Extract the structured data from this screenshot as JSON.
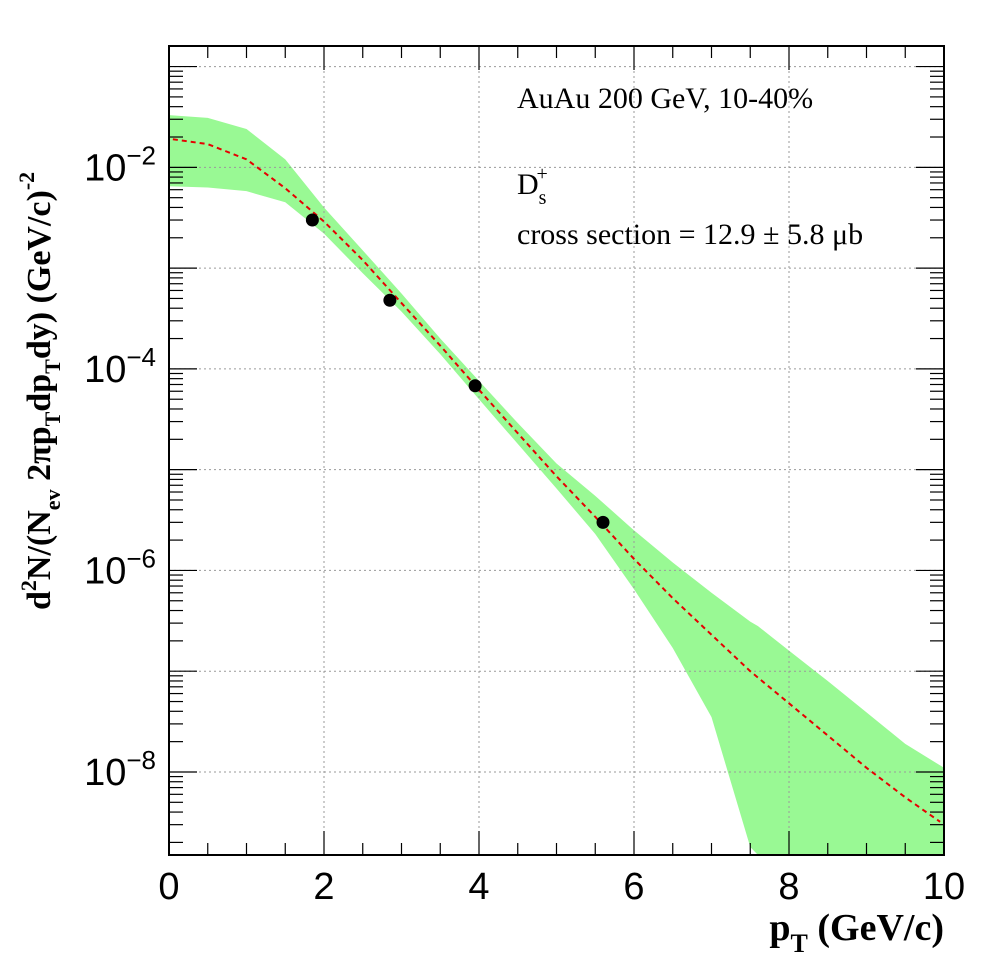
{
  "chart_data": {
    "type": "scatter",
    "title": "",
    "annotations": {
      "system": "AuAu 200 GeV, 10-40%",
      "particle": "D",
      "particle_sub": "s",
      "particle_sup": "+",
      "cross_section": "cross section = 12.9 ± 5.8 μb"
    },
    "xlabel": {
      "main": "p",
      "sub": "T",
      "rest": " (GeV/c)"
    },
    "ylabel": "d²N/(N_ev 2πp_T dp_T dy) (GeV/c)^-2",
    "xlim": [
      0,
      10
    ],
    "ylim": [
      1.5e-09,
      0.16
    ],
    "log_y": true,
    "grid": true,
    "x_ticks": [
      0,
      2,
      4,
      6,
      8,
      10
    ],
    "x_tick_labels": [
      "0",
      "2",
      "4",
      "6",
      "8",
      "10"
    ],
    "y_ticks": [
      1e-08,
      1e-06,
      0.0001,
      0.01
    ],
    "y_tick_labels": [
      {
        "base": "10",
        "exp": "−8"
      },
      {
        "base": "10",
        "exp": "−6"
      },
      {
        "base": "10",
        "exp": "−4"
      },
      {
        "base": "10",
        "exp": "−2"
      }
    ],
    "data_points": {
      "x": [
        1.85,
        2.85,
        3.95,
        5.6
      ],
      "y": [
        0.003,
        0.00048,
        6.8e-05,
        3e-06
      ]
    },
    "fit_curve": {
      "x": [
        0.05,
        0.5,
        1.0,
        1.5,
        2.0,
        2.5,
        3.0,
        3.5,
        4.0,
        4.5,
        5.0,
        5.5,
        6.0,
        6.5,
        7.0,
        7.5,
        8.0,
        8.5,
        9.0,
        9.5,
        9.95
      ],
      "y": [
        0.019,
        0.017,
        0.012,
        0.0062,
        0.0029,
        0.0012,
        0.00045,
        0.00017,
        6.2e-05,
        2.3e-05,
        8.6e-06,
        3.4e-06,
        1.3e-06,
        5.3e-07,
        2.3e-07,
        1e-07,
        4.8e-08,
        2.3e-08,
        1.1e-08,
        5.6e-09,
        3.2e-09
      ]
    },
    "band": {
      "x": [
        0.0,
        0.5,
        1.0,
        1.5,
        2.0,
        2.5,
        3.0,
        3.5,
        4.0,
        4.5,
        5.0,
        5.5,
        6.0,
        6.5,
        7.0,
        7.5,
        7.6,
        8.0,
        8.5,
        9.0,
        9.5,
        10.0
      ],
      "upper": [
        0.033,
        0.031,
        0.024,
        0.012,
        0.004,
        0.0015,
        0.00056,
        0.0002,
        7.6e-05,
        2.9e-05,
        1.15e-05,
        5.5e-06,
        2.5e-06,
        1.2e-06,
        6e-07,
        3.1e-07,
        2.8e-07,
        1.6e-07,
        8e-08,
        3.9e-08,
        1.9e-08,
        1.1e-08
      ],
      "lower": [
        0.0065,
        0.0063,
        0.0058,
        0.0045,
        0.0022,
        0.00089,
        0.00037,
        0.00014,
        5e-05,
        1.8e-05,
        6.5e-06,
        2.3e-06,
        6.5e-07,
        1.7e-07,
        3.5e-08,
        1.8e-09,
        1.5e-09,
        1.5e-09,
        1.5e-09,
        1.5e-09,
        1.5e-09,
        1.5e-09
      ]
    },
    "colors": {
      "band": "#99f994",
      "fit": "#e60000",
      "points": "#000000",
      "grid": "#9a9a9a"
    }
  }
}
